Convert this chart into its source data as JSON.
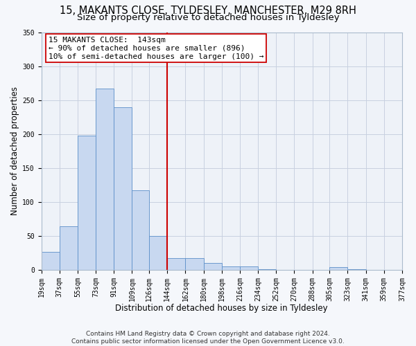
{
  "title1": "15, MAKANTS CLOSE, TYLDESLEY, MANCHESTER, M29 8RH",
  "title2": "Size of property relative to detached houses in Tyldesley",
  "xlabel": "Distribution of detached houses by size in Tyldesley",
  "ylabel": "Number of detached properties",
  "footnote1": "Contains HM Land Registry data © Crown copyright and database right 2024.",
  "footnote2": "Contains public sector information licensed under the Open Government Licence v3.0.",
  "bin_edges": [
    19,
    37,
    55,
    73,
    91,
    109,
    126,
    144,
    162,
    180,
    198,
    216,
    234,
    252,
    270,
    288,
    305,
    323,
    341,
    359,
    377
  ],
  "bar_heights": [
    27,
    65,
    198,
    267,
    240,
    117,
    50,
    18,
    18,
    11,
    5,
    5,
    1,
    0,
    0,
    0,
    4,
    1,
    0,
    0
  ],
  "bar_color": "#c8d8f0",
  "bar_edge_color": "#5b8fc9",
  "vline_x": 144,
  "vline_color": "#cc0000",
  "annotation_text": "15 MAKANTS CLOSE:  143sqm\n← 90% of detached houses are smaller (896)\n10% of semi-detached houses are larger (100) →",
  "annotation_box_color": "#ffffff",
  "annotation_box_edge_color": "#cc0000",
  "ylim": [
    0,
    350
  ],
  "yticks": [
    0,
    50,
    100,
    150,
    200,
    250,
    300,
    350
  ],
  "grid_color": "#c8d0e0",
  "bg_color": "#eef2f8",
  "fig_bg_color": "#f5f7fb",
  "title_fontsize": 10.5,
  "subtitle_fontsize": 9.5,
  "annotation_fontsize": 8,
  "tick_fontsize": 7,
  "axis_label_fontsize": 8.5,
  "footnote_fontsize": 6.5
}
